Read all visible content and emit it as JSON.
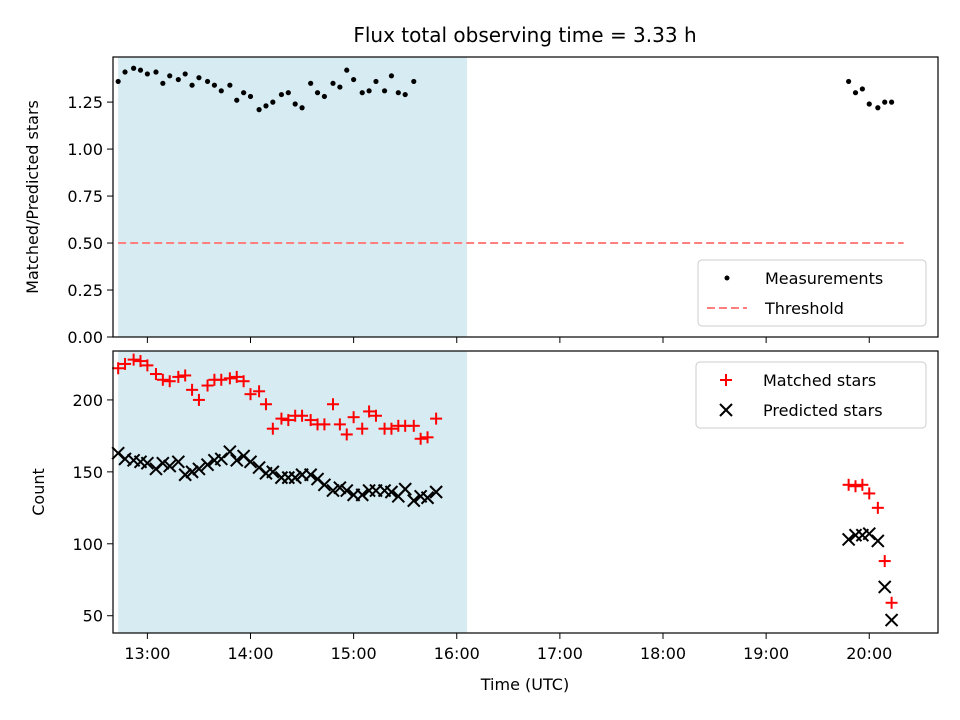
{
  "chart_data": [
    {
      "type": "scatter",
      "title": "Flux total observing time = 3.33 h",
      "xlabel": "",
      "ylabel": "Matched/Predicted stars",
      "xlim": [
        "12:40",
        "20:40"
      ],
      "ylim": [
        0,
        1.49
      ],
      "yticks": [
        "0.00",
        "0.25",
        "0.50",
        "0.75",
        "1.00",
        "1.25"
      ],
      "xticks": [
        "13:00",
        "14:00",
        "15:00",
        "16:00",
        "17:00",
        "18:00",
        "19:00",
        "20:00"
      ],
      "shaded_span": [
        "12:43",
        "16:06"
      ],
      "shade_color": "#add8e6",
      "threshold": {
        "name": "Threshold",
        "value": 0.5,
        "x_range": [
          "12:43",
          "20:20"
        ],
        "color": "#ff7f7f",
        "style": "dashed"
      },
      "series": [
        {
          "name": "Measurements",
          "marker": "dot",
          "color": "#000000",
          "x": [
            "12:43",
            "12:47",
            "12:52",
            "12:56",
            "13:00",
            "13:05",
            "13:09",
            "13:13",
            "13:18",
            "13:22",
            "13:26",
            "13:30",
            "13:35",
            "13:39",
            "13:43",
            "13:48",
            "13:52",
            "13:56",
            "14:00",
            "14:05",
            "14:09",
            "14:13",
            "14:18",
            "14:22",
            "14:26",
            "14:30",
            "14:35",
            "14:39",
            "14:43",
            "14:48",
            "14:52",
            "14:56",
            "15:00",
            "15:05",
            "15:09",
            "15:13",
            "15:18",
            "15:22",
            "15:26",
            "15:30",
            "15:35",
            "15:39",
            "15:43",
            "15:48",
            "15:52",
            "15:56",
            "16:00",
            "16:05",
            "19:48",
            "19:52",
            "19:56",
            "20:00",
            "20:05",
            "20:09",
            "20:13",
            "20:18"
          ],
          "y": [
            1.36,
            1.41,
            1.43,
            1.42,
            1.4,
            1.41,
            1.35,
            1.39,
            1.37,
            1.4,
            1.34,
            1.38,
            1.36,
            1.34,
            1.31,
            1.34,
            1.26,
            1.3,
            1.28,
            1.21,
            1.23,
            1.25,
            1.29,
            1.3,
            1.24,
            1.22,
            1.35,
            1.3,
            1.28,
            1.35,
            1.33,
            1.42,
            1.37,
            1.3,
            1.31,
            1.36,
            1.31,
            1.39,
            1.3,
            1.29,
            1.36,
            null,
            null,
            null,
            null,
            null,
            null,
            null,
            1.36,
            1.3,
            1.32,
            1.24,
            1.22,
            1.25,
            1.25,
            null
          ]
        }
      ],
      "legend": {
        "placement": "lower-right",
        "entries": [
          "Measurements",
          "Threshold"
        ]
      }
    },
    {
      "type": "scatter",
      "title": "",
      "xlabel": "Time (UTC)",
      "ylabel": "Count",
      "xlim": [
        "12:40",
        "20:40"
      ],
      "ylim": [
        38,
        234
      ],
      "yticks": [
        "50",
        "100",
        "150",
        "200"
      ],
      "xticks": [
        "13:00",
        "14:00",
        "15:00",
        "16:00",
        "17:00",
        "18:00",
        "19:00",
        "20:00"
      ],
      "shaded_span": [
        "12:43",
        "16:06"
      ],
      "shade_color": "#add8e6",
      "series": [
        {
          "name": "Matched stars",
          "marker": "plus",
          "color": "#ff0000",
          "x": [
            "12:43",
            "12:47",
            "12:52",
            "12:56",
            "13:00",
            "13:05",
            "13:09",
            "13:13",
            "13:18",
            "13:22",
            "13:26",
            "13:30",
            "13:35",
            "13:39",
            "13:43",
            "13:48",
            "13:52",
            "13:56",
            "14:00",
            "14:05",
            "14:09",
            "14:13",
            "14:18",
            "14:22",
            "14:26",
            "14:30",
            "14:35",
            "14:39",
            "14:43",
            "14:48",
            "14:52",
            "14:56",
            "15:00",
            "15:05",
            "15:09",
            "15:13",
            "15:18",
            "15:22",
            "15:26",
            "15:30",
            "15:35",
            "15:39",
            "15:43",
            "15:48",
            "15:52",
            "15:56",
            "16:00",
            "16:05",
            "19:48",
            "19:52",
            "19:56",
            "20:00",
            "20:05",
            "20:09",
            "20:13",
            "20:18"
          ],
          "y": [
            222,
            225,
            228,
            227,
            224,
            218,
            214,
            213,
            216,
            217,
            207,
            200,
            210,
            214,
            214,
            215,
            216,
            213,
            204,
            206,
            197,
            180,
            187,
            186,
            189,
            189,
            186,
            183,
            183,
            197,
            183,
            176,
            188,
            180,
            192,
            189,
            180,
            180,
            182,
            182,
            182,
            173,
            174,
            187,
            null,
            null,
            null,
            null,
            141,
            140,
            141,
            135,
            125,
            88,
            59,
            null
          ]
        },
        {
          "name": "Predicted stars",
          "marker": "x",
          "color": "#000000",
          "x": [
            "12:43",
            "12:47",
            "12:52",
            "12:56",
            "13:00",
            "13:05",
            "13:09",
            "13:13",
            "13:18",
            "13:22",
            "13:26",
            "13:30",
            "13:35",
            "13:39",
            "13:43",
            "13:48",
            "13:52",
            "13:56",
            "14:00",
            "14:05",
            "14:09",
            "14:13",
            "14:18",
            "14:22",
            "14:26",
            "14:30",
            "14:35",
            "14:39",
            "14:43",
            "14:48",
            "14:52",
            "14:56",
            "15:00",
            "15:05",
            "15:09",
            "15:13",
            "15:18",
            "15:22",
            "15:26",
            "15:30",
            "15:35",
            "15:39",
            "15:43",
            "15:48",
            "15:52",
            "15:56",
            "16:00",
            "16:05",
            "19:48",
            "19:52",
            "19:56",
            "20:00",
            "20:05",
            "20:09",
            "20:13",
            "20:18"
          ],
          "y": [
            163,
            159,
            158,
            157,
            156,
            152,
            156,
            154,
            157,
            148,
            150,
            152,
            155,
            158,
            159,
            164,
            158,
            161,
            157,
            153,
            149,
            150,
            146,
            146,
            146,
            148,
            148,
            145,
            141,
            137,
            139,
            137,
            134,
            134,
            137,
            137,
            137,
            136,
            133,
            138,
            130,
            133,
            132,
            136,
            null,
            null,
            null,
            null,
            103,
            106,
            106,
            107,
            102,
            70,
            47,
            null
          ]
        }
      ],
      "legend": {
        "placement": "upper-right",
        "entries": [
          "Matched stars",
          "Predicted stars"
        ]
      }
    }
  ]
}
